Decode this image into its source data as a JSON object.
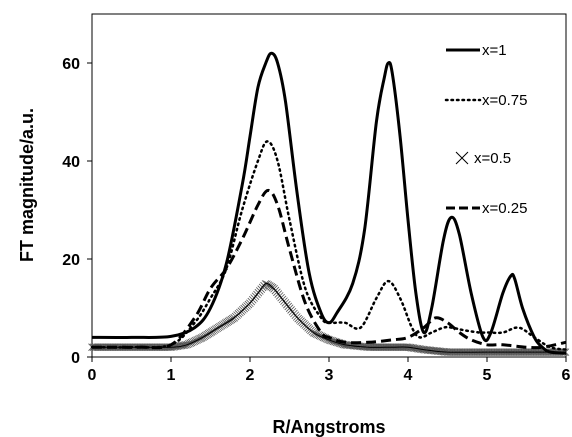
{
  "chart_data": {
    "type": "line",
    "title": "",
    "xlabel": "R/Angstroms",
    "ylabel": "FT magnitude/a.u.",
    "xlim": [
      0,
      6
    ],
    "ylim": [
      0,
      70
    ],
    "xticks": [
      "0",
      "1",
      "2",
      "3",
      "4",
      "5",
      "6"
    ],
    "yticks": [
      "0",
      "20",
      "40",
      "60"
    ],
    "grid": false,
    "legend_position": "top-right",
    "series": [
      {
        "name": "x=1",
        "style": "solid",
        "color": "#000000",
        "x": [
          0.0,
          0.5,
          1.0,
          1.3,
          1.5,
          1.7,
          1.9,
          2.0,
          2.1,
          2.2,
          2.27,
          2.35,
          2.45,
          2.6,
          2.75,
          2.9,
          3.0,
          3.1,
          3.3,
          3.45,
          3.6,
          3.7,
          3.75,
          3.8,
          3.9,
          4.0,
          4.1,
          4.2,
          4.3,
          4.45,
          4.55,
          4.65,
          4.8,
          4.95,
          5.05,
          5.2,
          5.3,
          5.35,
          5.45,
          5.6,
          5.7,
          5.8,
          6.0
        ],
        "y": [
          4,
          4,
          4.2,
          6,
          10,
          19,
          35,
          45,
          55,
          60,
          62,
          60,
          52,
          33,
          17,
          9,
          7,
          9,
          15,
          26,
          48,
          57,
          60,
          58,
          45,
          28,
          13,
          5,
          10,
          24,
          28.5,
          25,
          13,
          4,
          5,
          13,
          16.5,
          16,
          10,
          4,
          2,
          1,
          0.8
        ]
      },
      {
        "name": "x=0.75",
        "style": "dotted",
        "color": "#000000",
        "x": [
          0.0,
          0.5,
          1.0,
          1.3,
          1.5,
          1.7,
          1.9,
          2.1,
          2.22,
          2.35,
          2.5,
          2.7,
          2.9,
          3.0,
          3.2,
          3.4,
          3.6,
          3.75,
          3.9,
          4.05,
          4.15,
          4.3,
          4.45,
          4.55,
          4.7,
          4.9,
          5.0,
          5.2,
          5.4,
          5.6,
          5.8,
          6.0
        ],
        "y": [
          2,
          2,
          2.5,
          7,
          12,
          18,
          30,
          40,
          44,
          40,
          28,
          14,
          8,
          7,
          7,
          6,
          12,
          15.5,
          12,
          6,
          4,
          5,
          6,
          6,
          5.5,
          5,
          5,
          5,
          6,
          4,
          2,
          1.5
        ]
      },
      {
        "name": "x=0.5",
        "style": "cross",
        "color": "#000000",
        "x": [
          0.0,
          0.5,
          1.0,
          1.2,
          1.4,
          1.6,
          1.8,
          2.0,
          2.1,
          2.2,
          2.3,
          2.4,
          2.6,
          2.8,
          3.0,
          3.2,
          3.5,
          3.8,
          4.0,
          4.2,
          4.5,
          5.0,
          5.5,
          6.0
        ],
        "y": [
          2,
          2,
          2,
          2.5,
          4,
          6,
          8,
          11,
          13,
          15,
          14,
          12,
          8,
          5,
          3.5,
          2.5,
          2,
          2,
          2,
          1.5,
          1,
          1,
          1,
          1
        ]
      },
      {
        "name": "x=0.25",
        "style": "dashed",
        "color": "#000000",
        "x": [
          0.0,
          0.3,
          0.6,
          1.0,
          1.3,
          1.5,
          1.7,
          1.9,
          2.1,
          2.23,
          2.35,
          2.5,
          2.7,
          2.9,
          3.0,
          3.2,
          3.5,
          3.8,
          4.0,
          4.2,
          4.35,
          4.5,
          4.65,
          4.8,
          5.0,
          5.2,
          5.5,
          5.7,
          6.0
        ],
        "y": [
          2,
          2,
          2,
          2.5,
          8,
          14,
          18,
          24,
          31,
          34,
          31,
          22,
          11,
          5,
          4,
          3,
          3,
          3.5,
          4,
          6,
          8,
          7,
          5,
          3.5,
          2.5,
          2.5,
          2,
          2,
          3
        ]
      }
    ]
  }
}
